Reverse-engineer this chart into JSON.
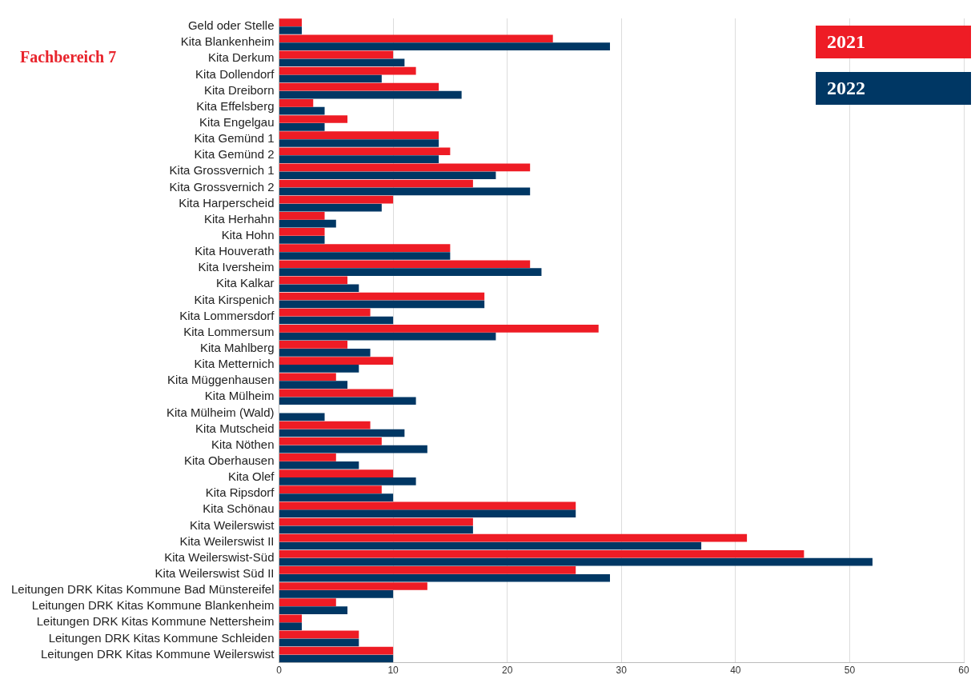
{
  "chart_data": {
    "type": "bar",
    "orientation": "horizontal",
    "annotations": [
      "Fachbereich 7"
    ],
    "categories": [
      "Geld oder Stelle",
      "Kita Blankenheim",
      "Kita Derkum",
      "Kita Dollendorf",
      "Kita Dreiborn",
      "Kita Effelsberg",
      "Kita Engelgau",
      "Kita Gemünd 1",
      "Kita Gemünd 2",
      "Kita Grossvernich 1",
      "Kita Grossvernich 2",
      "Kita Harperscheid",
      "Kita Herhahn",
      "Kita Hohn",
      "Kita Houverath",
      "Kita Iversheim",
      "Kita Kalkar",
      "Kita Kirspenich",
      "Kita Lommersdorf",
      "Kita Lommersum",
      "Kita Mahlberg",
      "Kita Metternich",
      "Kita Müggenhausen",
      "Kita Mülheim",
      "Kita Mülheim (Wald)",
      "Kita Mutscheid",
      "Kita Nöthen",
      "Kita Oberhausen",
      "Kita Olef",
      "Kita Ripsdorf",
      "Kita Schönau",
      "Kita Weilerswist",
      "Kita Weilerswist II",
      "Kita Weilerswist-Süd",
      "Kita Weilerswist Süd II",
      "Leitungen DRK Kitas Kommune Bad Münstereifel",
      "Leitungen DRK Kitas Kommune Blankenheim",
      "Leitungen DRK Kitas Kommune Nettersheim",
      "Leitungen DRK Kitas Kommune Schleiden",
      "Leitungen DRK Kitas Kommune Weilerswist"
    ],
    "series": [
      {
        "name": "2021",
        "color": "#ee1c25",
        "values": [
          2,
          24,
          10,
          12,
          14,
          3,
          6,
          14,
          15,
          22,
          17,
          10,
          4,
          4,
          15,
          22,
          6,
          18,
          8,
          28,
          6,
          10,
          5,
          10,
          0,
          8,
          9,
          5,
          10,
          9,
          26,
          17,
          41,
          46,
          26,
          13,
          5,
          2,
          7,
          10
        ]
      },
      {
        "name": "2022",
        "color": "#003764",
        "values": [
          2,
          29,
          11,
          9,
          16,
          4,
          4,
          14,
          14,
          19,
          22,
          9,
          5,
          4,
          15,
          23,
          7,
          18,
          10,
          19,
          8,
          7,
          6,
          12,
          4,
          11,
          13,
          7,
          12,
          10,
          26,
          17,
          37,
          52,
          29,
          10,
          6,
          2,
          7,
          10
        ]
      }
    ],
    "xlim": [
      0,
      60
    ],
    "xticks": [
      0,
      10,
      20,
      30,
      40,
      50,
      60
    ],
    "grid": "x",
    "legend": "top right"
  }
}
